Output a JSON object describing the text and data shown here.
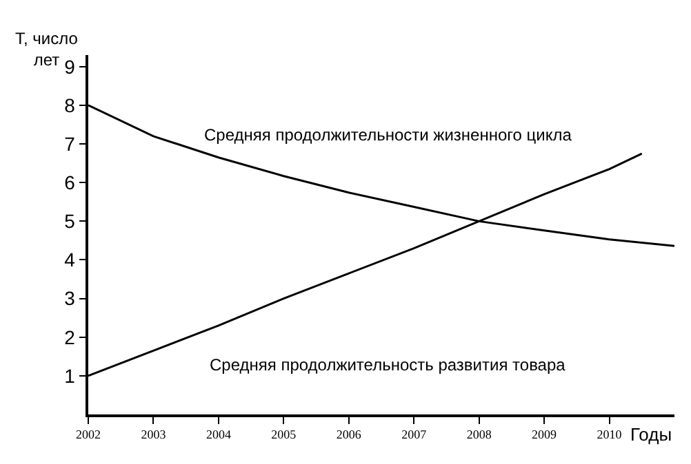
{
  "chart_data": {
    "type": "line",
    "xlabel": "Годы",
    "ylabel": "T, число лет",
    "x": [
      2002,
      2003,
      2004,
      2005,
      2006,
      2007,
      2008,
      2009,
      2010,
      2011
    ],
    "series": [
      {
        "name": "Средняя продолжительности жизненного цикла",
        "color": "#000000",
        "values": [
          8.0,
          7.2,
          6.65,
          6.17,
          5.74,
          5.37,
          5.0,
          4.76,
          4.53,
          4.36
        ]
      },
      {
        "name": "Средняя продолжительность развития товара",
        "color": "#000000",
        "x": [
          2002,
          2003,
          2004,
          2005,
          2006,
          2007,
          2008,
          2009,
          2010,
          2010.5
        ],
        "values": [
          1.0,
          1.65,
          2.3,
          3.0,
          3.65,
          4.3,
          5.0,
          5.7,
          6.35,
          6.75
        ]
      }
    ],
    "xlim": [
      2002,
      2011
    ],
    "xticks": [
      2002,
      2003,
      2004,
      2005,
      2006,
      2007,
      2008,
      2009,
      2010
    ],
    "ylim": [
      0,
      9.3
    ],
    "yticks": [
      1,
      2,
      3,
      4,
      5,
      6,
      7,
      8,
      9
    ],
    "legend": false,
    "marker": "none",
    "line_style": "solid"
  }
}
